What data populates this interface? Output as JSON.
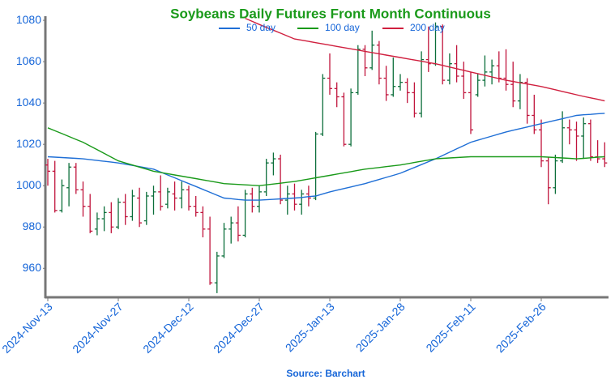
{
  "chart_data": {
    "type": "ohlc",
    "title": "Soybeans Daily Futures Front Month Continuous",
    "source": "Source: Barchart",
    "categories": [
      "2024-Nov-13",
      null,
      null,
      null,
      null,
      null,
      null,
      null,
      null,
      null,
      "2024-Nov-27",
      null,
      null,
      null,
      null,
      null,
      null,
      null,
      null,
      null,
      "2024-Dec-12",
      null,
      null,
      null,
      null,
      null,
      null,
      null,
      null,
      null,
      "2024-Dec-27",
      null,
      null,
      null,
      null,
      null,
      null,
      null,
      null,
      null,
      "2025-Jan-13",
      null,
      null,
      null,
      null,
      null,
      null,
      null,
      null,
      null,
      "2025-Jan-28",
      null,
      null,
      null,
      null,
      null,
      null,
      null,
      null,
      null,
      "2025-Feb-11",
      null,
      null,
      null,
      null,
      null,
      null,
      null,
      null,
      null,
      "2025-Feb-26",
      null,
      null,
      null,
      null,
      null,
      null,
      null,
      null,
      null
    ],
    "ohlc": [
      [
        1010,
        1013,
        1000,
        1007
      ],
      [
        1007,
        1012,
        987,
        988
      ],
      [
        988,
        1003,
        987,
        1000
      ],
      [
        999,
        1011,
        990,
        1009
      ],
      [
        1009,
        1011,
        996,
        998
      ],
      [
        998,
        1002,
        985,
        990
      ],
      [
        990,
        996,
        977,
        978
      ],
      [
        979,
        987,
        976,
        984
      ],
      [
        984,
        990,
        978,
        987
      ],
      [
        987,
        992,
        977,
        980
      ],
      [
        980,
        994,
        979,
        992
      ],
      [
        992,
        996,
        981,
        985
      ],
      [
        985,
        998,
        983,
        995
      ],
      [
        994,
        999,
        980,
        982
      ],
      [
        983,
        997,
        981,
        995
      ],
      [
        995,
        1000,
        986,
        997
      ],
      [
        997,
        1005,
        988,
        990
      ],
      [
        991,
        999,
        989,
        997
      ],
      [
        996,
        1002,
        988,
        994
      ],
      [
        994,
        1002,
        989,
        998
      ],
      [
        998,
        1000,
        988,
        990
      ],
      [
        990,
        995,
        985,
        987
      ],
      [
        987,
        990,
        975,
        979
      ],
      [
        979,
        985,
        952,
        953
      ],
      [
        953,
        968,
        948,
        966
      ],
      [
        966,
        982,
        965,
        979
      ],
      [
        979,
        985,
        972,
        982
      ],
      [
        982,
        990,
        973,
        976
      ],
      [
        976,
        998,
        975,
        996
      ],
      [
        996,
        999,
        987,
        990
      ],
      [
        990,
        1000,
        987,
        997
      ],
      [
        997,
        1013,
        995,
        1011
      ],
      [
        1011,
        1016,
        1005,
        1013
      ],
      [
        1013,
        1015,
        991,
        993
      ],
      [
        993,
        1000,
        986,
        996
      ],
      [
        996,
        1001,
        988,
        991
      ],
      [
        991,
        998,
        986,
        996
      ],
      [
        996,
        1000,
        990,
        994
      ],
      [
        994,
        1026,
        993,
        1025
      ],
      [
        1025,
        1054,
        1024,
        1052
      ],
      [
        1052,
        1064,
        1044,
        1047
      ],
      [
        1047,
        1050,
        1038,
        1043
      ],
      [
        1043,
        1045,
        1019,
        1020
      ],
      [
        1020,
        1047,
        1019,
        1045
      ],
      [
        1045,
        1068,
        1044,
        1066
      ],
      [
        1066,
        1068,
        1053,
        1057
      ],
      [
        1057,
        1075,
        1056,
        1068
      ],
      [
        1068,
        1070,
        1049,
        1052
      ],
      [
        1052,
        1058,
        1041,
        1044
      ],
      [
        1044,
        1062,
        1043,
        1048
      ],
      [
        1048,
        1054,
        1046,
        1050
      ],
      [
        1050,
        1052,
        1040,
        1045
      ],
      [
        1045,
        1050,
        1033,
        1035
      ],
      [
        1035,
        1065,
        1033,
        1061
      ],
      [
        1061,
        1077,
        1055,
        1059
      ],
      [
        1059,
        1079,
        1058,
        1077
      ],
      [
        1077,
        1078,
        1049,
        1051
      ],
      [
        1051,
        1064,
        1049,
        1059
      ],
      [
        1059,
        1068,
        1050,
        1053
      ],
      [
        1053,
        1060,
        1042,
        1045
      ],
      [
        1045,
        1055,
        1025,
        1027
      ],
      [
        1044,
        1054,
        1043,
        1051
      ],
      [
        1051,
        1063,
        1048,
        1055
      ],
      [
        1055,
        1061,
        1049,
        1058
      ],
      [
        1058,
        1065,
        1050,
        1052
      ],
      [
        1052,
        1066,
        1046,
        1049
      ],
      [
        1049,
        1060,
        1038,
        1041
      ],
      [
        1041,
        1054,
        1037,
        1050
      ],
      [
        1050,
        1052,
        1030,
        1034
      ],
      [
        1034,
        1044,
        1025,
        1027
      ],
      [
        1027,
        1032,
        1009,
        1012
      ],
      [
        1012,
        1014,
        991,
        999
      ],
      [
        999,
        1015,
        996,
        1012
      ],
      [
        1012,
        1036,
        1011,
        1028
      ],
      [
        1028,
        1032,
        1020,
        1027
      ],
      [
        1027,
        1031,
        1012,
        1024
      ],
      [
        1024,
        1033,
        1013,
        1030
      ],
      [
        1030,
        1032,
        1012,
        1014
      ],
      [
        1014,
        1022,
        1011,
        1013
      ],
      [
        1013,
        1021,
        1009,
        1011
      ]
    ],
    "up_color": "#0b6e3a",
    "down_color": "#c0143c",
    "series": [
      {
        "name": "50 day",
        "color": "#1f6fd6",
        "values": [
          1014,
          1013.8,
          1013.6,
          1013.4,
          1013.2,
          1013,
          1012.6,
          1012.2,
          1011.8,
          1011.4,
          1011,
          1010.4,
          1009.8,
          1009.2,
          1008.6,
          1008,
          1006.6,
          1005.2,
          1003.8,
          1002.4,
          1001,
          999.6,
          998.2,
          996.8,
          995.4,
          994,
          993.7,
          993.3,
          993,
          993,
          993,
          993.2,
          993.4,
          993.6,
          993.8,
          994,
          994.3,
          994.7,
          995,
          996,
          997,
          997.8,
          998.6,
          999.4,
          1000.2,
          1001,
          1002,
          1003,
          1004,
          1005,
          1006,
          1007.4,
          1008.8,
          1010.2,
          1011.6,
          1013,
          1014.6,
          1016.2,
          1017.8,
          1019.4,
          1021,
          1022,
          1023,
          1024,
          1025,
          1026,
          1026.8,
          1027.6,
          1028.4,
          1029.2,
          1030,
          1030.8,
          1031.6,
          1032.4,
          1033.2,
          1034,
          1034.3,
          1034.5,
          1034.8,
          1035
        ]
      },
      {
        "name": "100 day",
        "color": "#1a9a1a",
        "values": [
          1028,
          1026.6,
          1025.2,
          1023.8,
          1022.4,
          1021,
          1019.2,
          1017.4,
          1015.6,
          1013.8,
          1012,
          1011,
          1010,
          1009,
          1008,
          1007,
          1006.4,
          1005.8,
          1005.2,
          1004.6,
          1004,
          1003.4,
          1002.8,
          1002.2,
          1001.6,
          1001,
          1000.8,
          1000.6,
          1000.4,
          1000.2,
          1000,
          1000.4,
          1000.8,
          1001.2,
          1001.6,
          1002,
          1002.6,
          1003.2,
          1003.8,
          1004.4,
          1005,
          1005.6,
          1006.2,
          1006.8,
          1007.4,
          1008,
          1008.4,
          1008.8,
          1009.2,
          1009.6,
          1010,
          1010.6,
          1011.2,
          1011.8,
          1012.4,
          1013,
          1013.2,
          1013.4,
          1013.6,
          1013.8,
          1014,
          1014,
          1014,
          1014,
          1014,
          1014,
          1014,
          1014,
          1014,
          1014,
          1014,
          1013.8,
          1013.6,
          1013.4,
          1013.2,
          1013,
          1013.2,
          1013.5,
          1013.8,
          1014
        ]
      },
      {
        "name": "200 day",
        "color": "#d0203f",
        "values": [
          null,
          null,
          null,
          null,
          null,
          null,
          null,
          null,
          null,
          null,
          null,
          null,
          null,
          null,
          null,
          null,
          null,
          null,
          null,
          null,
          null,
          null,
          null,
          null,
          null,
          null,
          null,
          null,
          1081,
          1079.5,
          1078,
          1076.6,
          1075.2,
          1073.8,
          1072.4,
          1071,
          1070.4,
          1069.8,
          1069.2,
          1068.6,
          1068,
          1067.4,
          1066.8,
          1066.2,
          1065.6,
          1065,
          1064.4,
          1063.8,
          1063.2,
          1062.6,
          1062,
          1061.4,
          1060.8,
          1060.2,
          1059.6,
          1059,
          1058.2,
          1057.4,
          1056.6,
          1055.8,
          1055,
          1054.2,
          1053.4,
          1052.6,
          1051.8,
          1051,
          1050.4,
          1049.8,
          1049.2,
          1048.6,
          1048,
          1047.2,
          1046.4,
          1045.6,
          1044.8,
          1044,
          1043.2,
          1042.5,
          1041.8,
          1041
        ]
      }
    ],
    "ylim": [
      946,
      1082
    ],
    "yticks": [
      960,
      980,
      1000,
      1020,
      1040,
      1060,
      1080
    ],
    "grid": false
  }
}
